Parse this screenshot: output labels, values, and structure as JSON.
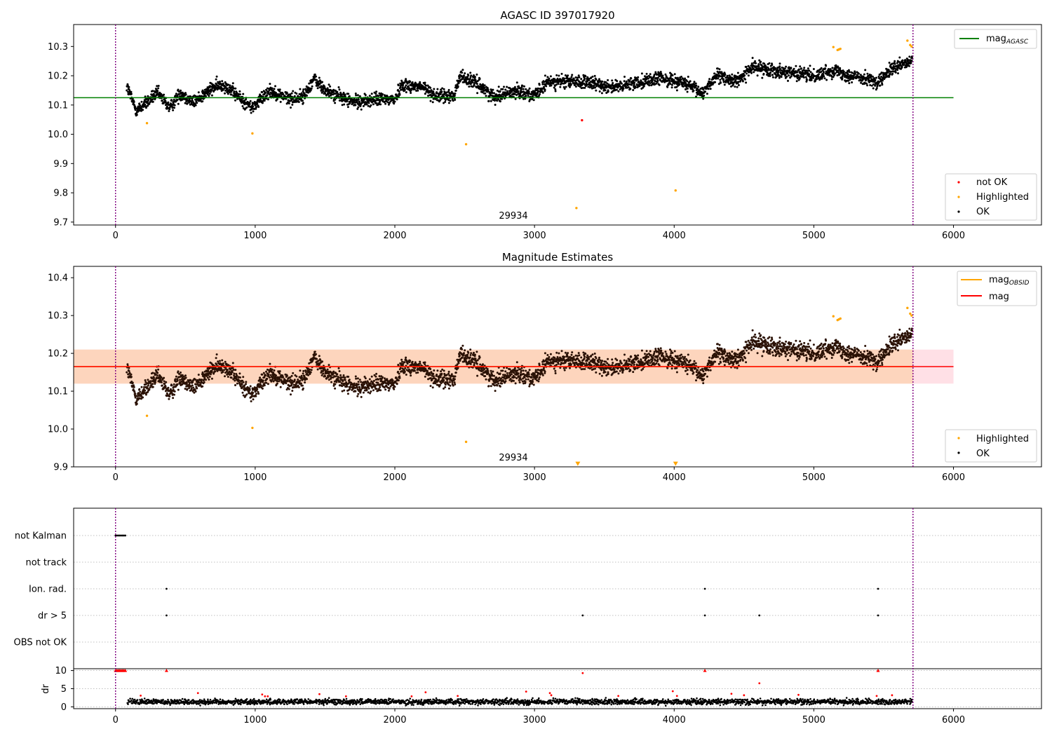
{
  "chart_data": [
    {
      "type": "scatter",
      "title": "AGASC ID 397017920",
      "xlim": [
        -300,
        6630
      ],
      "ylim": [
        9.69,
        10.375
      ],
      "xticks": [
        0,
        1000,
        2000,
        3000,
        4000,
        5000,
        6000
      ],
      "yticks": [
        9.7,
        9.8,
        9.9,
        10.0,
        10.1,
        10.2,
        10.3
      ],
      "obsid_label": {
        "text": "29934",
        "x": 2850,
        "y": 9.72
      },
      "vlines": [
        0,
        5710
      ],
      "lines": [
        {
          "name": "mag",
          "name_sub": "AGASC",
          "y": 10.125,
          "x": [
            -300,
            6000
          ],
          "color": "#008000"
        }
      ],
      "legend_lines_placement": "upper right",
      "legend_points_placement": "lower right",
      "series": [
        {
          "name": "not OK",
          "color": "#ff0000",
          "x": [
            3340
          ],
          "y": [
            10.048
          ]
        },
        {
          "name": "Highlighted",
          "color": "#ffa500",
          "x": [
            225,
            980,
            2510,
            3300,
            4010,
            5140,
            5170,
            5180,
            5190,
            5670,
            5690,
            5700
          ],
          "y": [
            10.038,
            10.003,
            9.966,
            9.748,
            9.808,
            10.298,
            10.288,
            10.29,
            10.292,
            10.32,
            10.305,
            10.3
          ]
        },
        {
          "name": "OK",
          "color": "#000000",
          "segments": [
            [
              80,
              0,
              10.165
            ],
            [
              150,
              0,
              10.08
            ],
            [
              300,
              0,
              10.14
            ],
            [
              390,
              0,
              10.09
            ],
            [
              460,
              0,
              10.14
            ],
            [
              560,
              0,
              10.11
            ],
            [
              700,
              0,
              10.16
            ],
            [
              780,
              0,
              10.17
            ],
            [
              900,
              0,
              10.12
            ],
            [
              980,
              0,
              10.09
            ],
            [
              1100,
              0,
              10.15
            ],
            [
              1250,
              0,
              10.12
            ],
            [
              1350,
              0,
              10.13
            ],
            [
              1420,
              0,
              10.19
            ],
            [
              1500,
              0,
              10.15
            ],
            [
              1700,
              0,
              10.11
            ],
            [
              1900,
              0,
              10.12
            ],
            [
              2000,
              0,
              10.12
            ],
            [
              2050,
              0,
              10.17
            ],
            [
              2200,
              0,
              10.16
            ],
            [
              2300,
              0,
              10.13
            ],
            [
              2420,
              0,
              10.13
            ],
            [
              2470,
              0,
              10.2
            ],
            [
              2600,
              0,
              10.17
            ],
            [
              2700,
              0,
              10.13
            ],
            [
              2900,
              0,
              10.15
            ],
            [
              3000,
              0,
              10.13
            ],
            [
              3100,
              0,
              10.18
            ],
            [
              3300,
              0,
              10.18
            ],
            [
              3450,
              0,
              10.17
            ],
            [
              3600,
              0,
              10.16
            ],
            [
              3750,
              0,
              10.18
            ],
            [
              3900,
              0,
              10.19
            ],
            [
              4050,
              0,
              10.18
            ],
            [
              4200,
              0,
              10.14
            ],
            [
              4300,
              0,
              10.2
            ],
            [
              4450,
              0,
              10.18
            ],
            [
              4560,
              0,
              10.23
            ],
            [
              4700,
              0,
              10.22
            ],
            [
              4850,
              0,
              10.21
            ],
            [
              5000,
              0,
              10.2
            ],
            [
              5150,
              0,
              10.22
            ],
            [
              5250,
              0,
              10.2
            ],
            [
              5400,
              0,
              10.19
            ],
            [
              5450,
              0,
              10.17
            ],
            [
              5550,
              0,
              10.22
            ],
            [
              5650,
              0,
              10.24
            ],
            [
              5705,
              0,
              10.25
            ]
          ]
        }
      ]
    },
    {
      "type": "scatter",
      "title": "Magnitude Estimates",
      "xlim": [
        -300,
        6630
      ],
      "ylim": [
        9.9,
        10.43
      ],
      "xticks": [
        0,
        1000,
        2000,
        3000,
        4000,
        5000,
        6000
      ],
      "yticks": [
        9.9,
        10.0,
        10.1,
        10.2,
        10.3,
        10.4
      ],
      "obsid_label": {
        "text": "29934",
        "x": 2850,
        "y": 9.92
      },
      "vlines": [
        0,
        5710
      ],
      "bands": [
        {
          "y0": 10.12,
          "y1": 10.21,
          "x": [
            -300,
            6000
          ],
          "color": "#ffe0e6"
        },
        {
          "y0": 10.12,
          "y1": 10.21,
          "x": [
            -300,
            5710
          ],
          "color": "#fdd5bd"
        }
      ],
      "lines": [
        {
          "name": "mag",
          "name_sub": "OBSID",
          "y": 10.165,
          "x": [
            -300,
            5710
          ],
          "color": "#ffa500"
        },
        {
          "name": "mag",
          "name_sub": "",
          "y": 10.165,
          "x": [
            -300,
            6000
          ],
          "color": "#ff0000"
        }
      ],
      "legend_lines_placement": "upper right",
      "legend_points_placement": "lower right",
      "series": [
        {
          "name": "Highlighted",
          "color": "#ffa500",
          "x": [
            225,
            980,
            2510,
            5140,
            5170,
            5180,
            5190,
            5670,
            5690,
            5700
          ],
          "y": [
            10.035,
            10.003,
            9.966,
            10.298,
            10.288,
            10.29,
            10.292,
            10.32,
            10.305,
            10.3
          ]
        },
        {
          "name": "Highlighted (below axis)",
          "color": "#ffa500",
          "marker": "down-triangle",
          "x": [
            3310,
            4010
          ],
          "y": [
            9.908,
            9.908
          ]
        },
        {
          "name": "OK",
          "color": "#000000",
          "same_as_panel": 1
        }
      ]
    },
    {
      "type": "scatter",
      "xlim": [
        -300,
        6630
      ],
      "flag_rows": [
        "not Kalman",
        "not track",
        "Ion. rad.",
        "dr > 5",
        "OBS not OK"
      ],
      "flags": {
        "not Kalman": [
          0,
          10,
          20,
          30,
          40,
          50,
          60,
          70
        ],
        "not track": [],
        "Ion. rad.": [
          365,
          4220,
          5460
        ],
        "dr > 5": [
          365,
          3345,
          4220,
          4610,
          5460
        ],
        "OBS not OK": []
      },
      "vlines": [
        0,
        5710
      ],
      "dr": {
        "ylabel": "dr",
        "yticks": [
          0,
          5,
          10
        ],
        "ylim": [
          -0.5,
          10.5
        ],
        "clip_value": 10,
        "clipped_x": [
          0,
          10,
          20,
          30,
          40,
          50,
          60,
          70,
          365,
          4220,
          5460
        ],
        "red_points": [
          {
            "x": 180,
            "y": 3.1
          },
          {
            "x": 590,
            "y": 3.8
          },
          {
            "x": 1050,
            "y": 3.4
          },
          {
            "x": 1070,
            "y": 2.9
          },
          {
            "x": 1090,
            "y": 2.9
          },
          {
            "x": 1460,
            "y": 3.5
          },
          {
            "x": 1650,
            "y": 2.9
          },
          {
            "x": 2120,
            "y": 2.9
          },
          {
            "x": 2220,
            "y": 4.0
          },
          {
            "x": 2450,
            "y": 3.0
          },
          {
            "x": 2940,
            "y": 4.2
          },
          {
            "x": 3110,
            "y": 3.8
          },
          {
            "x": 3120,
            "y": 3.2
          },
          {
            "x": 3345,
            "y": 9.3
          },
          {
            "x": 3600,
            "y": 3.0
          },
          {
            "x": 3990,
            "y": 4.3
          },
          {
            "x": 4020,
            "y": 3.0
          },
          {
            "x": 4410,
            "y": 3.6
          },
          {
            "x": 4500,
            "y": 3.2
          },
          {
            "x": 4610,
            "y": 6.5
          },
          {
            "x": 4890,
            "y": 3.3
          },
          {
            "x": 5450,
            "y": 3.0
          },
          {
            "x": 5560,
            "y": 3.2
          }
        ]
      },
      "xticks": [
        0,
        1000,
        2000,
        3000,
        4000,
        5000,
        6000
      ]
    }
  ]
}
